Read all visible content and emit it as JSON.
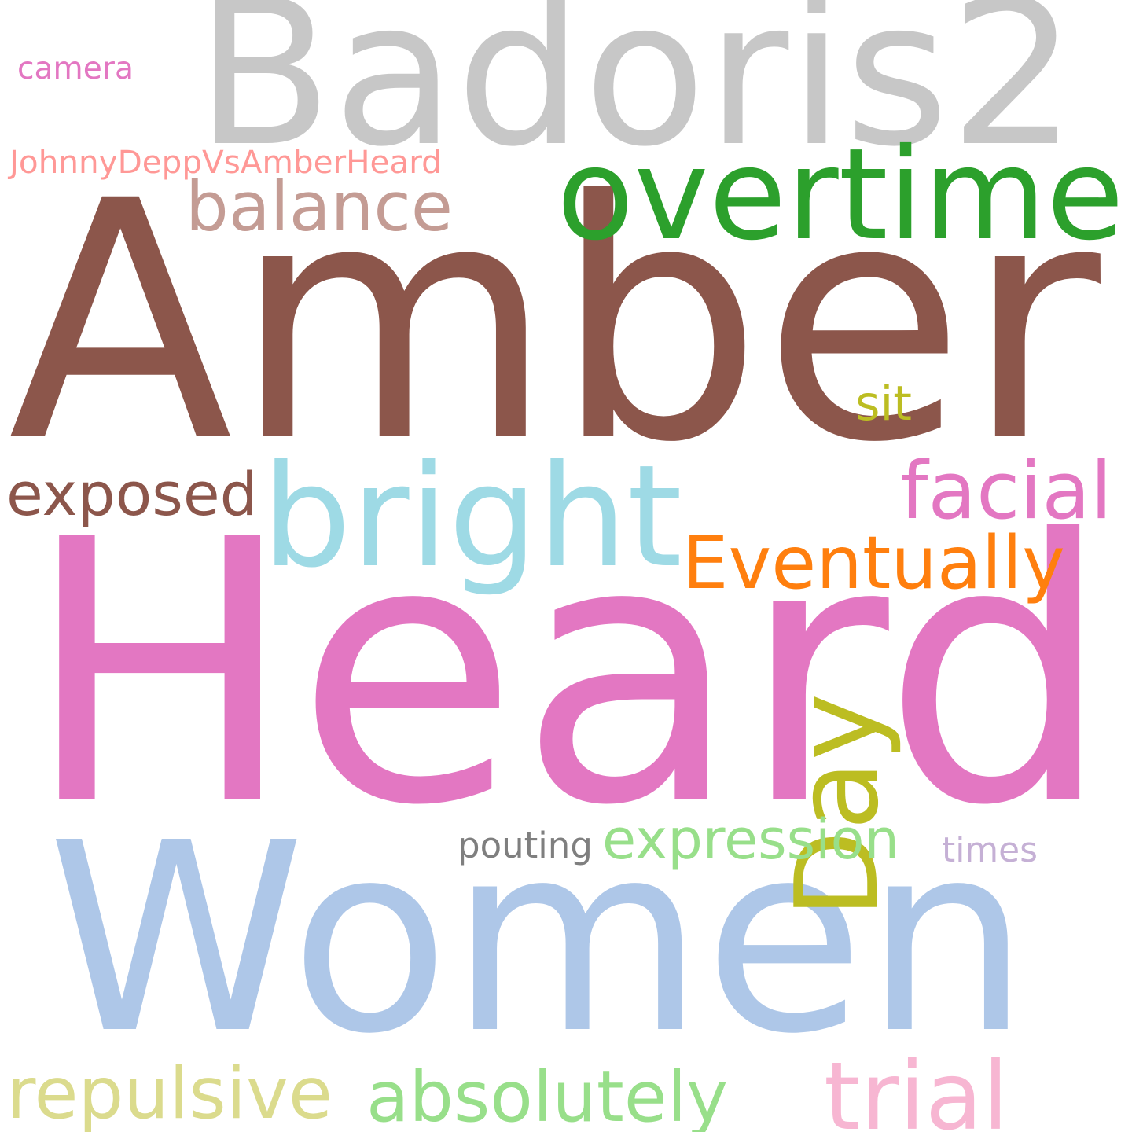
{
  "words": [
    {
      "text": "Badoris2",
      "color": "#c7c7c7"
    },
    {
      "text": "Amber",
      "color": "#8c564b"
    },
    {
      "text": "Heard",
      "color": "#e377c2"
    },
    {
      "text": "Women",
      "color": "#aec7e8"
    },
    {
      "text": "overtime",
      "color": "#2ca02c"
    },
    {
      "text": "bright",
      "color": "#9edae5"
    },
    {
      "text": "balance",
      "color": "#c49c94"
    },
    {
      "text": "exposed",
      "color": "#8c564b"
    },
    {
      "text": "facial",
      "color": "#e377c2"
    },
    {
      "text": "Eventually",
      "color": "#ff7f0e"
    },
    {
      "text": "Day",
      "color": "#bcbd22"
    },
    {
      "text": "expression",
      "color": "#98df8a"
    },
    {
      "text": "pouting",
      "color": "#7f7f7f"
    },
    {
      "text": "times",
      "color": "#c5b0d5"
    },
    {
      "text": "repulsive",
      "color": "#dbdb8d"
    },
    {
      "text": "absolutely",
      "color": "#98df8a"
    },
    {
      "text": "trial",
      "color": "#f7b6d2"
    },
    {
      "text": "camera",
      "color": "#e377c2"
    },
    {
      "text": "JohnnyDeppVsAmberHeard",
      "color": "#ff9896"
    },
    {
      "text": "sit",
      "color": "#bcbd22"
    }
  ]
}
